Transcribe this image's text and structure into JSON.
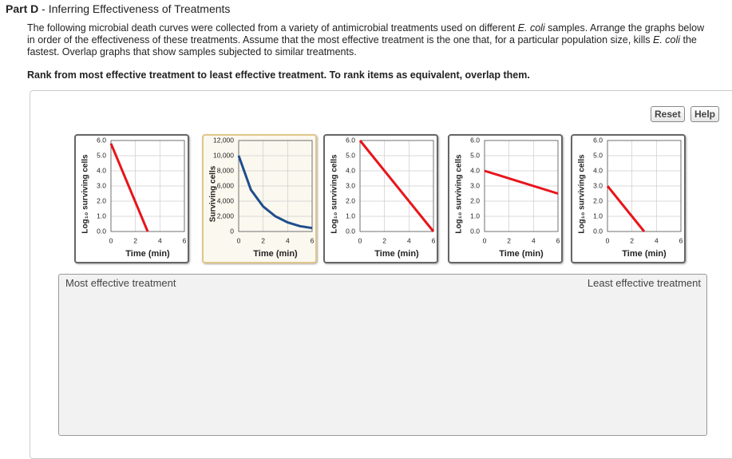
{
  "header": {
    "part": "Part D",
    "separator": " - ",
    "title": "Inferring Effectiveness of Treatments"
  },
  "intro": [
    "The following microbial death curves were collected from a variety of antimicrobial treatments used on different ",
    "E. coli",
    " samples. Arrange the graphs below in order of the effectiveness of these treatments. Assume that the most effective treatment is the one that, for a particular population size, kills ",
    "E. coli",
    " the fastest. Overlap graphs that show samples subjected to similar treatments."
  ],
  "instruction": "Rank from most effective treatment to least effective treatment. To rank items as equivalent, overlap them.",
  "buttons": [
    "Reset",
    "Help"
  ],
  "cards": [
    {
      "y_label": "Log₁₀ surviving cells",
      "x_label": "Time (min)",
      "color": "#e8141b",
      "xlim": [
        0,
        6
      ],
      "xticks": [
        0,
        2,
        4,
        6
      ],
      "ylim": [
        0,
        6
      ],
      "yticks": [
        {
          "value": 0,
          "label": "0.0"
        },
        {
          "value": 1,
          "label": "1.0"
        },
        {
          "value": 2,
          "label": "2.0"
        },
        {
          "value": 3,
          "label": "3.0"
        },
        {
          "value": 4,
          "label": "4.0"
        },
        {
          "value": 5,
          "label": "5.0"
        },
        {
          "value": 6,
          "label": "6.0"
        }
      ],
      "x": [
        0,
        3
      ],
      "values": [
        5.8,
        0
      ]
    },
    {
      "y_label": "Surviving cells",
      "x_label": "Time (min)",
      "color": "#1f4e8c",
      "xlim": [
        0,
        6
      ],
      "xticks": [
        0,
        2,
        4,
        6
      ],
      "ylim": [
        0,
        12000
      ],
      "yticks": [
        0,
        {
          "value": 2000,
          "label": "2,000"
        },
        {
          "value": 4000,
          "label": "4,000"
        },
        {
          "value": 6000,
          "label": "6,000"
        },
        {
          "value": 8000,
          "label": "8,000"
        },
        {
          "value": 10000,
          "label": "10,000"
        },
        {
          "value": 12000,
          "label": "12,000"
        }
      ],
      "x": [
        0,
        1,
        2,
        3,
        4,
        5,
        6
      ],
      "values": [
        10000,
        5500,
        3300,
        2000,
        1200,
        700,
        450
      ]
    },
    {
      "y_label": "Log₁₀ surviving cells",
      "x_label": "Time (min)",
      "color": "#e8141b",
      "xlim": [
        0,
        6
      ],
      "xticks": [
        0,
        2,
        4,
        6
      ],
      "ylim": [
        0,
        6
      ],
      "yticks": [
        {
          "value": 0,
          "label": "0.0"
        },
        {
          "value": 1,
          "label": "1.0"
        },
        {
          "value": 2,
          "label": "2.0"
        },
        {
          "value": 3,
          "label": "3.0"
        },
        {
          "value": 4,
          "label": "4.0"
        },
        {
          "value": 5,
          "label": "5.0"
        },
        {
          "value": 6,
          "label": "6.0"
        }
      ],
      "x": [
        0,
        6
      ],
      "values": [
        6,
        0
      ]
    },
    {
      "y_label": "Log₁₀ surviving cells",
      "x_label": "Time (min)",
      "color": "#e8141b",
      "xlim": [
        0,
        6
      ],
      "xticks": [
        0,
        2,
        4,
        6
      ],
      "ylim": [
        0,
        6
      ],
      "yticks": [
        {
          "value": 0,
          "label": "0.0"
        },
        {
          "value": 1,
          "label": "1.0"
        },
        {
          "value": 2,
          "label": "2.0"
        },
        {
          "value": 3,
          "label": "3.0"
        },
        {
          "value": 4,
          "label": "4.0"
        },
        {
          "value": 5,
          "label": "5.0"
        },
        {
          "value": 6,
          "label": "6.0"
        }
      ],
      "x": [
        0,
        6
      ],
      "values": [
        4,
        2.5
      ]
    },
    {
      "y_label": "Log₁₀ surviving cells",
      "x_label": "Time (min)",
      "color": "#e8141b",
      "xlim": [
        0,
        6
      ],
      "xticks": [
        0,
        2,
        4,
        6
      ],
      "ylim": [
        0,
        6
      ],
      "yticks": [
        {
          "value": 0,
          "label": "0.0"
        },
        {
          "value": 1,
          "label": "1.0"
        },
        {
          "value": 2,
          "label": "2.0"
        },
        {
          "value": 3,
          "label": "3.0"
        },
        {
          "value": 4,
          "label": "4.0"
        },
        {
          "value": 5,
          "label": "5.0"
        },
        {
          "value": 6,
          "label": "6.0"
        }
      ],
      "x": [
        0,
        3
      ],
      "values": [
        3,
        0
      ]
    }
  ],
  "dropzone": {
    "left_label": "Most effective treatment",
    "right_label": "Least effective treatment"
  }
}
